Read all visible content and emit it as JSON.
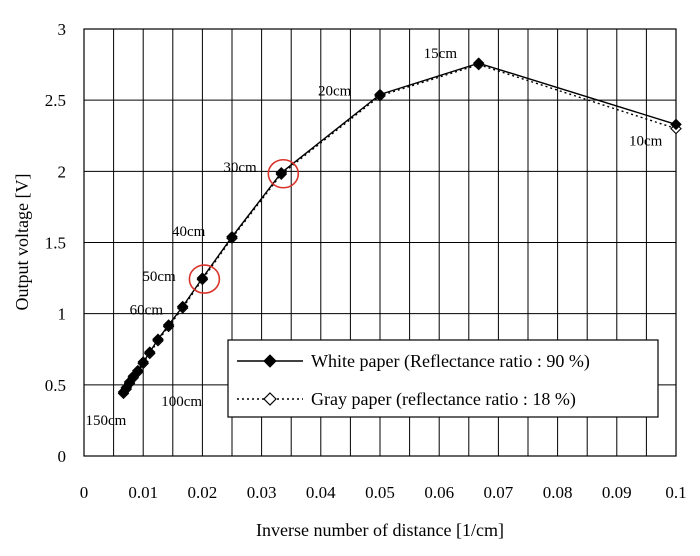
{
  "chart_data": {
    "type": "line",
    "xlabel": "Inverse number of distance [1/cm]",
    "ylabel": "Output voltage [V]",
    "xlim": [
      0,
      0.1
    ],
    "ylim": [
      0,
      3
    ],
    "xticks": [
      0,
      0.01,
      0.02,
      0.03,
      0.04,
      0.05,
      0.06,
      0.07,
      0.08,
      0.09,
      0.1
    ],
    "xtick_labels": [
      "0",
      "0.01",
      "0.02",
      "0.03",
      "0.04",
      "0.05",
      "0.06",
      "0.07",
      "0.08",
      "0.09",
      "0.1"
    ],
    "yticks": [
      0,
      0.5,
      1,
      1.5,
      2,
      2.5,
      3
    ],
    "ytick_labels": [
      "0",
      "0.5",
      "1",
      "1.5",
      "2",
      "2.5",
      "3"
    ],
    "grid": true,
    "legend_position": "bottom-right",
    "series": [
      {
        "name": "White paper (Reflectance ratio : 90 %)",
        "line_style": "solid",
        "marker": "filled-diamond",
        "color": "#000000",
        "x": [
          0.00667,
          0.00714,
          0.00769,
          0.00833,
          0.00909,
          0.01,
          0.01111,
          0.0125,
          0.01429,
          0.01667,
          0.02,
          0.025,
          0.03333,
          0.05,
          0.06667,
          0.1
        ],
        "y": [
          0.45,
          0.48,
          0.52,
          0.56,
          0.6,
          0.66,
          0.73,
          0.82,
          0.92,
          1.05,
          1.25,
          1.54,
          1.99,
          2.54,
          2.76,
          2.33
        ]
      },
      {
        "name": "Gray paper (reflectance ratio : 18 %)",
        "line_style": "dotted",
        "marker": "open-diamond",
        "color": "#000000",
        "x": [
          0.00667,
          0.00714,
          0.00769,
          0.00833,
          0.00909,
          0.01,
          0.01111,
          0.0125,
          0.01429,
          0.01667,
          0.02,
          0.025,
          0.03333,
          0.05,
          0.06667,
          0.1
        ],
        "y": [
          0.44,
          0.47,
          0.51,
          0.55,
          0.59,
          0.65,
          0.72,
          0.81,
          0.91,
          1.04,
          1.24,
          1.53,
          1.98,
          2.53,
          2.75,
          2.3
        ]
      }
    ],
    "annotations": [
      {
        "text": "150cm",
        "x": 0.00667,
        "y": 0.45
      },
      {
        "text": "100cm",
        "x": 0.01,
        "y": 0.66
      },
      {
        "text": "60cm",
        "x": 0.01667,
        "y": 1.05
      },
      {
        "text": "50cm",
        "x": 0.02,
        "y": 1.25
      },
      {
        "text": "40cm",
        "x": 0.025,
        "y": 1.54
      },
      {
        "text": "30cm",
        "x": 0.03333,
        "y": 1.99
      },
      {
        "text": "20cm",
        "x": 0.05,
        "y": 2.54
      },
      {
        "text": "15cm",
        "x": 0.06667,
        "y": 2.76
      },
      {
        "text": "10cm",
        "x": 0.1,
        "y": 2.33
      }
    ],
    "highlight_circles": [
      {
        "x": 0.03333,
        "y": 1.99,
        "color": "#d9342b"
      },
      {
        "x": 0.02,
        "y": 1.25,
        "color": "#d9342b"
      }
    ]
  }
}
